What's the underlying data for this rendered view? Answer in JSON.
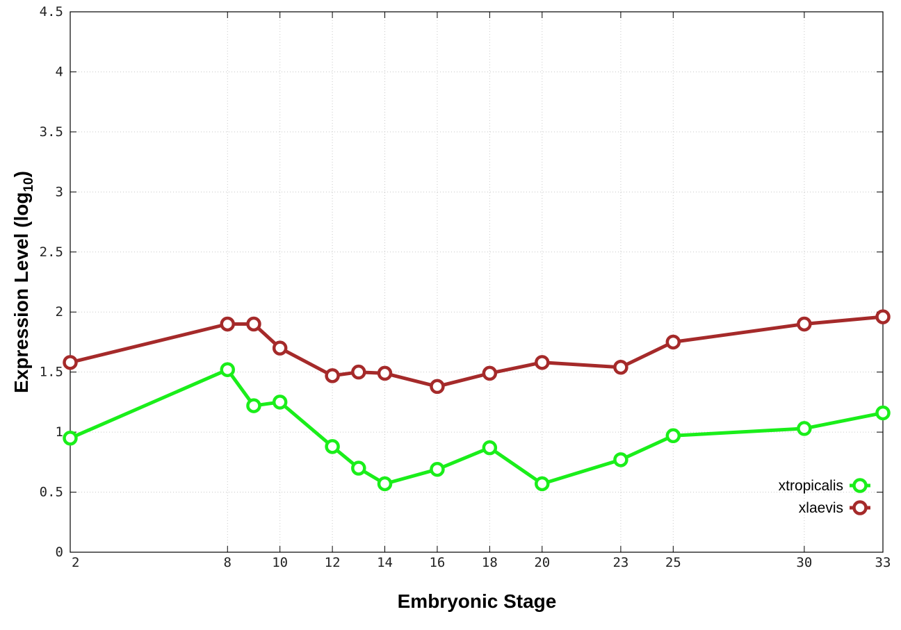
{
  "chart_data": {
    "type": "line",
    "title": "",
    "xlabel": "Embryonic Stage",
    "ylabel_main": "Expression Level (log",
    "ylabel_sub": "10",
    "ylabel_end": ")",
    "xlim": [
      2,
      33
    ],
    "ylim": [
      0,
      4.5
    ],
    "x_scale": "linear",
    "grid": true,
    "legend_position": "bottom-right",
    "x_ticks": [
      {
        "value": 2,
        "label": "2"
      },
      {
        "value": 8,
        "label": "8"
      },
      {
        "value": 10,
        "label": "10"
      },
      {
        "value": 12,
        "label": "12"
      },
      {
        "value": 14,
        "label": "14"
      },
      {
        "value": 16,
        "label": "16"
      },
      {
        "value": 18,
        "label": "18"
      },
      {
        "value": 20,
        "label": "20"
      },
      {
        "value": 23,
        "label": "23"
      },
      {
        "value": 25,
        "label": "25"
      },
      {
        "value": 30,
        "label": "30"
      },
      {
        "value": 33,
        "label": "33"
      }
    ],
    "y_ticks": [
      {
        "value": 0,
        "label": "0"
      },
      {
        "value": 0.5,
        "label": "0.5"
      },
      {
        "value": 1,
        "label": "1"
      },
      {
        "value": 1.5,
        "label": "1.5"
      },
      {
        "value": 2,
        "label": "2"
      },
      {
        "value": 2.5,
        "label": "2.5"
      },
      {
        "value": 3,
        "label": "3"
      },
      {
        "value": 3.5,
        "label": "3.5"
      },
      {
        "value": 4,
        "label": "4"
      },
      {
        "value": 4.5,
        "label": "4.5"
      }
    ],
    "series": [
      {
        "name": "xtropicalis",
        "color": "#1aee1a",
        "marker": "circle",
        "x": [
          2,
          8,
          9,
          10,
          12,
          13,
          14,
          16,
          18,
          20,
          23,
          25,
          30,
          33
        ],
        "values": [
          0.95,
          1.52,
          1.22,
          1.25,
          0.88,
          0.7,
          0.57,
          0.69,
          0.87,
          0.57,
          0.77,
          0.97,
          1.03,
          1.16
        ]
      },
      {
        "name": "xlaevis",
        "color": "#a52a2a",
        "marker": "circle",
        "x": [
          2,
          8,
          9,
          10,
          12,
          13,
          14,
          16,
          18,
          20,
          23,
          25,
          30,
          33
        ],
        "values": [
          1.58,
          1.9,
          1.9,
          1.7,
          1.47,
          1.5,
          1.49,
          1.38,
          1.49,
          1.58,
          1.54,
          1.75,
          1.9,
          1.96
        ]
      }
    ]
  }
}
